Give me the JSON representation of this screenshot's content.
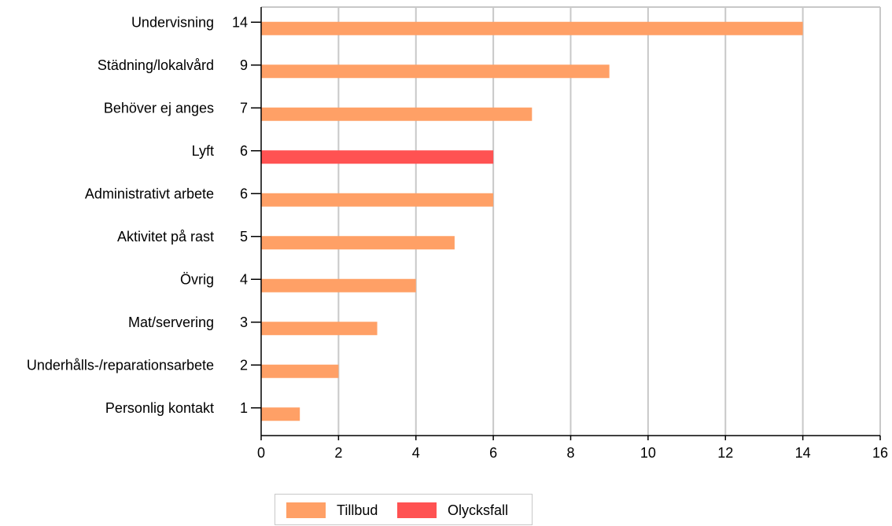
{
  "chart_data": {
    "type": "bar",
    "orientation": "horizontal",
    "categories": [
      "Undervisning",
      "Städning/lokalvård",
      "Behöver ej anges",
      "Lyft",
      "Administrativt arbete",
      "Aktivitet på rast",
      "Övrig",
      "Mat/servering",
      "Underhålls-/reparationsarbete",
      "Personlig kontakt"
    ],
    "count_labels": [
      "14",
      "9",
      "7",
      "6",
      "6",
      "5",
      "4",
      "3",
      "2",
      "1"
    ],
    "series": [
      {
        "name": "Tillbud",
        "color": "#FFA066",
        "values": [
          14,
          9,
          7,
          0,
          6,
          5,
          4,
          3,
          2,
          1
        ]
      },
      {
        "name": "Olycksfall",
        "color": "#FF5252",
        "values": [
          0,
          0,
          0,
          6,
          0,
          0,
          0,
          0,
          0,
          0
        ]
      }
    ],
    "xlim": [
      0,
      16
    ],
    "xticks": [
      0,
      2,
      4,
      6,
      8,
      10,
      12,
      14,
      16
    ],
    "xlabel": "",
    "ylabel": "",
    "grid": "vertical",
    "legend_position": "bottom-center",
    "colors": {
      "grid": "#C8C8C8",
      "axis": "#000000"
    }
  }
}
